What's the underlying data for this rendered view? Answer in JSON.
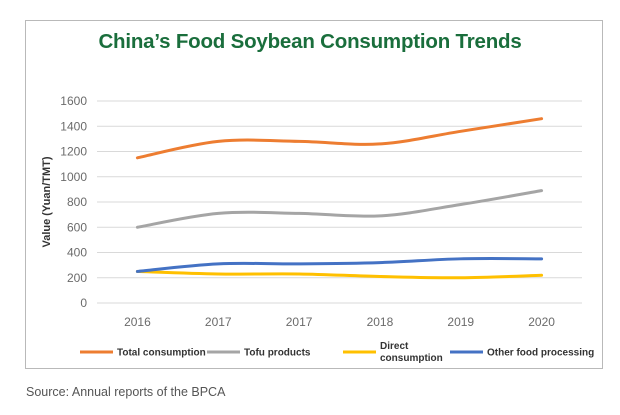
{
  "source_note": "Source: Annual reports of the BPCA",
  "chart_data": {
    "type": "line",
    "title": "China’s Food Soybean Consumption Trends",
    "xlabel": "",
    "ylabel": "Value (Yuan/TMT)",
    "categories": [
      "2016",
      "2017",
      "2017",
      "2018",
      "2019",
      "2020"
    ],
    "ylim": [
      0,
      1600
    ],
    "yticks": [
      0,
      200,
      400,
      600,
      800,
      1000,
      1200,
      1400,
      1600
    ],
    "ytick_labels": [
      "0",
      "200",
      "400",
      "600",
      "800",
      "1000",
      "1200",
      "1400",
      "1600"
    ],
    "grid": true,
    "legend_position": "bottom",
    "smooth": true,
    "series": [
      {
        "name": "Total consumption",
        "legend_label": [
          "Total consumption"
        ],
        "color": "#ed7d31",
        "values": [
          1150,
          1280,
          1280,
          1260,
          1360,
          1460
        ]
      },
      {
        "name": "Tofu products",
        "legend_label": [
          "Tofu products"
        ],
        "color": "#a5a5a5",
        "values": [
          600,
          710,
          710,
          690,
          780,
          890
        ]
      },
      {
        "name": "Direct consumption",
        "legend_label": [
          "Direct",
          "consumption"
        ],
        "color": "#ffc000",
        "values": [
          250,
          230,
          230,
          210,
          200,
          220
        ]
      },
      {
        "name": "Other food processing",
        "legend_label": [
          "Other food processing"
        ],
        "color": "#4472c4",
        "values": [
          250,
          310,
          310,
          320,
          350,
          350
        ]
      }
    ]
  }
}
